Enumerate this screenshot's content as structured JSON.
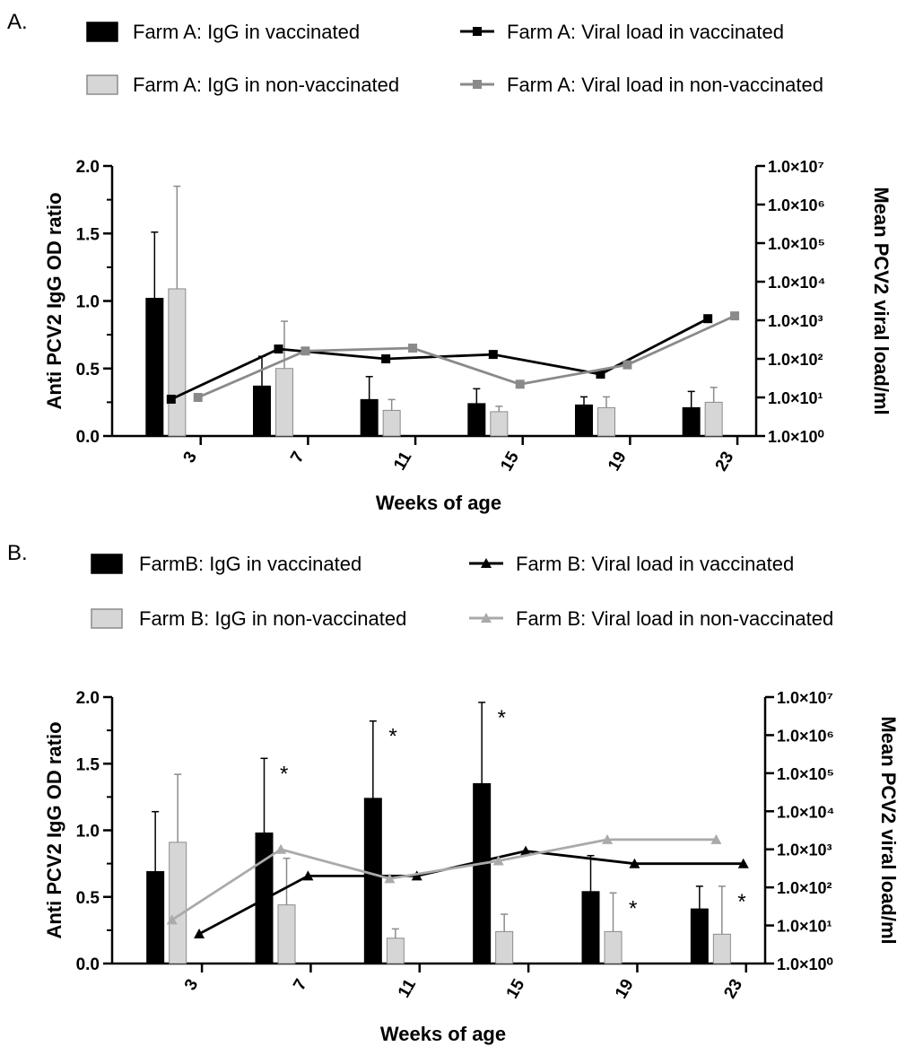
{
  "chart_data": [
    {
      "panel_label": "A.",
      "type": "bar+line",
      "xlabel": "Weeks of age",
      "ylabel": "Anti PCV2 IgG OD ratio",
      "y2label": "Mean PCV2 viral load/ml",
      "categories": [
        "3",
        "7",
        "11",
        "15",
        "19",
        "23"
      ],
      "ylim": [
        0,
        2.0
      ],
      "yticks": [
        "0.0",
        "0.5",
        "1.0",
        "1.5",
        "2.0"
      ],
      "y2_scale": "log",
      "y2lim": [
        1,
        10000000
      ],
      "y2ticks": [
        "1.0×10⁰",
        "1.0×10¹",
        "1.0×10²",
        "1.0×10³",
        "1.0×10⁴",
        "1.0×10⁵",
        "1.0×10⁶",
        "1.0×10⁷"
      ],
      "bar_series": [
        {
          "name": "Farm A: IgG in vaccinated",
          "color": "#000000",
          "edge": "#000000",
          "values": [
            1.02,
            0.37,
            0.27,
            0.24,
            0.23,
            0.21
          ],
          "errors": [
            0.49,
            0.22,
            0.17,
            0.11,
            0.06,
            0.12
          ]
        },
        {
          "name": "Farm A: IgG in non-vaccinated",
          "color": "#d6d6d6",
          "edge": "#8c8c8c",
          "values": [
            1.09,
            0.5,
            0.19,
            0.18,
            0.21,
            0.25
          ],
          "errors": [
            0.76,
            0.35,
            0.08,
            0.04,
            0.08,
            0.11
          ]
        }
      ],
      "line_series": [
        {
          "name": "Farm A: Viral load in vaccinated",
          "color": "#000000",
          "marker": "square",
          "x": [
            3.2,
            7.2,
            11.2,
            15.2,
            19.2,
            23.2
          ],
          "values": [
            9,
            180,
            100,
            130,
            40,
            1100
          ]
        },
        {
          "name": "Farm A: Viral load in non-vaccinated",
          "color": "#8a8a8a",
          "marker": "square",
          "x": [
            4.2,
            8.2,
            12.2,
            16.2,
            20.2,
            24.2
          ],
          "values": [
            10,
            160,
            190,
            22,
            70,
            1300
          ]
        }
      ],
      "annotations": []
    },
    {
      "panel_label": "B.",
      "type": "bar+line",
      "xlabel": "Weeks of age",
      "ylabel": "Anti PCV2 IgG OD ratio",
      "y2label": "Mean PCV2 viral load/ml",
      "categories": [
        "3",
        "7",
        "11",
        "15",
        "19",
        "23"
      ],
      "ylim": [
        0,
        2.0
      ],
      "yticks": [
        "0.0",
        "0.5",
        "1.0",
        "1.5",
        "2.0"
      ],
      "y2_scale": "log",
      "y2lim": [
        1,
        10000000
      ],
      "y2ticks": [
        "1.0×10⁰",
        "1.0×10¹",
        "1.0×10²",
        "1.0×10³",
        "1.0×10⁴",
        "1.0×10⁵",
        "1.0×10⁶",
        "1.0×10⁷"
      ],
      "bar_series": [
        {
          "name": "FarmB: IgG in vaccinated",
          "color": "#000000",
          "edge": "#000000",
          "values": [
            0.69,
            0.98,
            1.24,
            1.35,
            0.54,
            0.41
          ],
          "errors": [
            0.45,
            0.56,
            0.58,
            0.61,
            0.27,
            0.17
          ]
        },
        {
          "name": "Farm B: IgG in non-vaccinated",
          "color": "#d6d6d6",
          "edge": "#8c8c8c",
          "values": [
            0.91,
            0.44,
            0.19,
            0.24,
            0.24,
            0.22
          ],
          "errors": [
            0.51,
            0.35,
            0.07,
            0.13,
            0.29,
            0.36
          ]
        }
      ],
      "line_series": [
        {
          "name": "Farm B: Viral load in vaccinated",
          "color": "#000000",
          "marker": "triangle",
          "x": [
            4.2,
            8.2,
            12.2,
            16.2,
            20.2,
            24.2
          ],
          "values": [
            6,
            200,
            200,
            900,
            420,
            420
          ]
        },
        {
          "name": "Farm B: Viral load in non-vaccinated",
          "color": "#aaaaaa",
          "marker": "triangle",
          "x": [
            3.2,
            7.2,
            11.2,
            15.2,
            19.2,
            23.2
          ],
          "values": [
            14,
            1000,
            170,
            500,
            1800,
            1800
          ]
        }
      ],
      "annotations": [
        {
          "text": "*",
          "category": "7",
          "series": 0
        },
        {
          "text": "*",
          "category": "11",
          "series": 0
        },
        {
          "text": "*",
          "category": "15",
          "series": 0
        },
        {
          "text": "*",
          "category": "19",
          "series": 1
        },
        {
          "text": "*",
          "category": "23",
          "series": 1
        }
      ]
    }
  ]
}
